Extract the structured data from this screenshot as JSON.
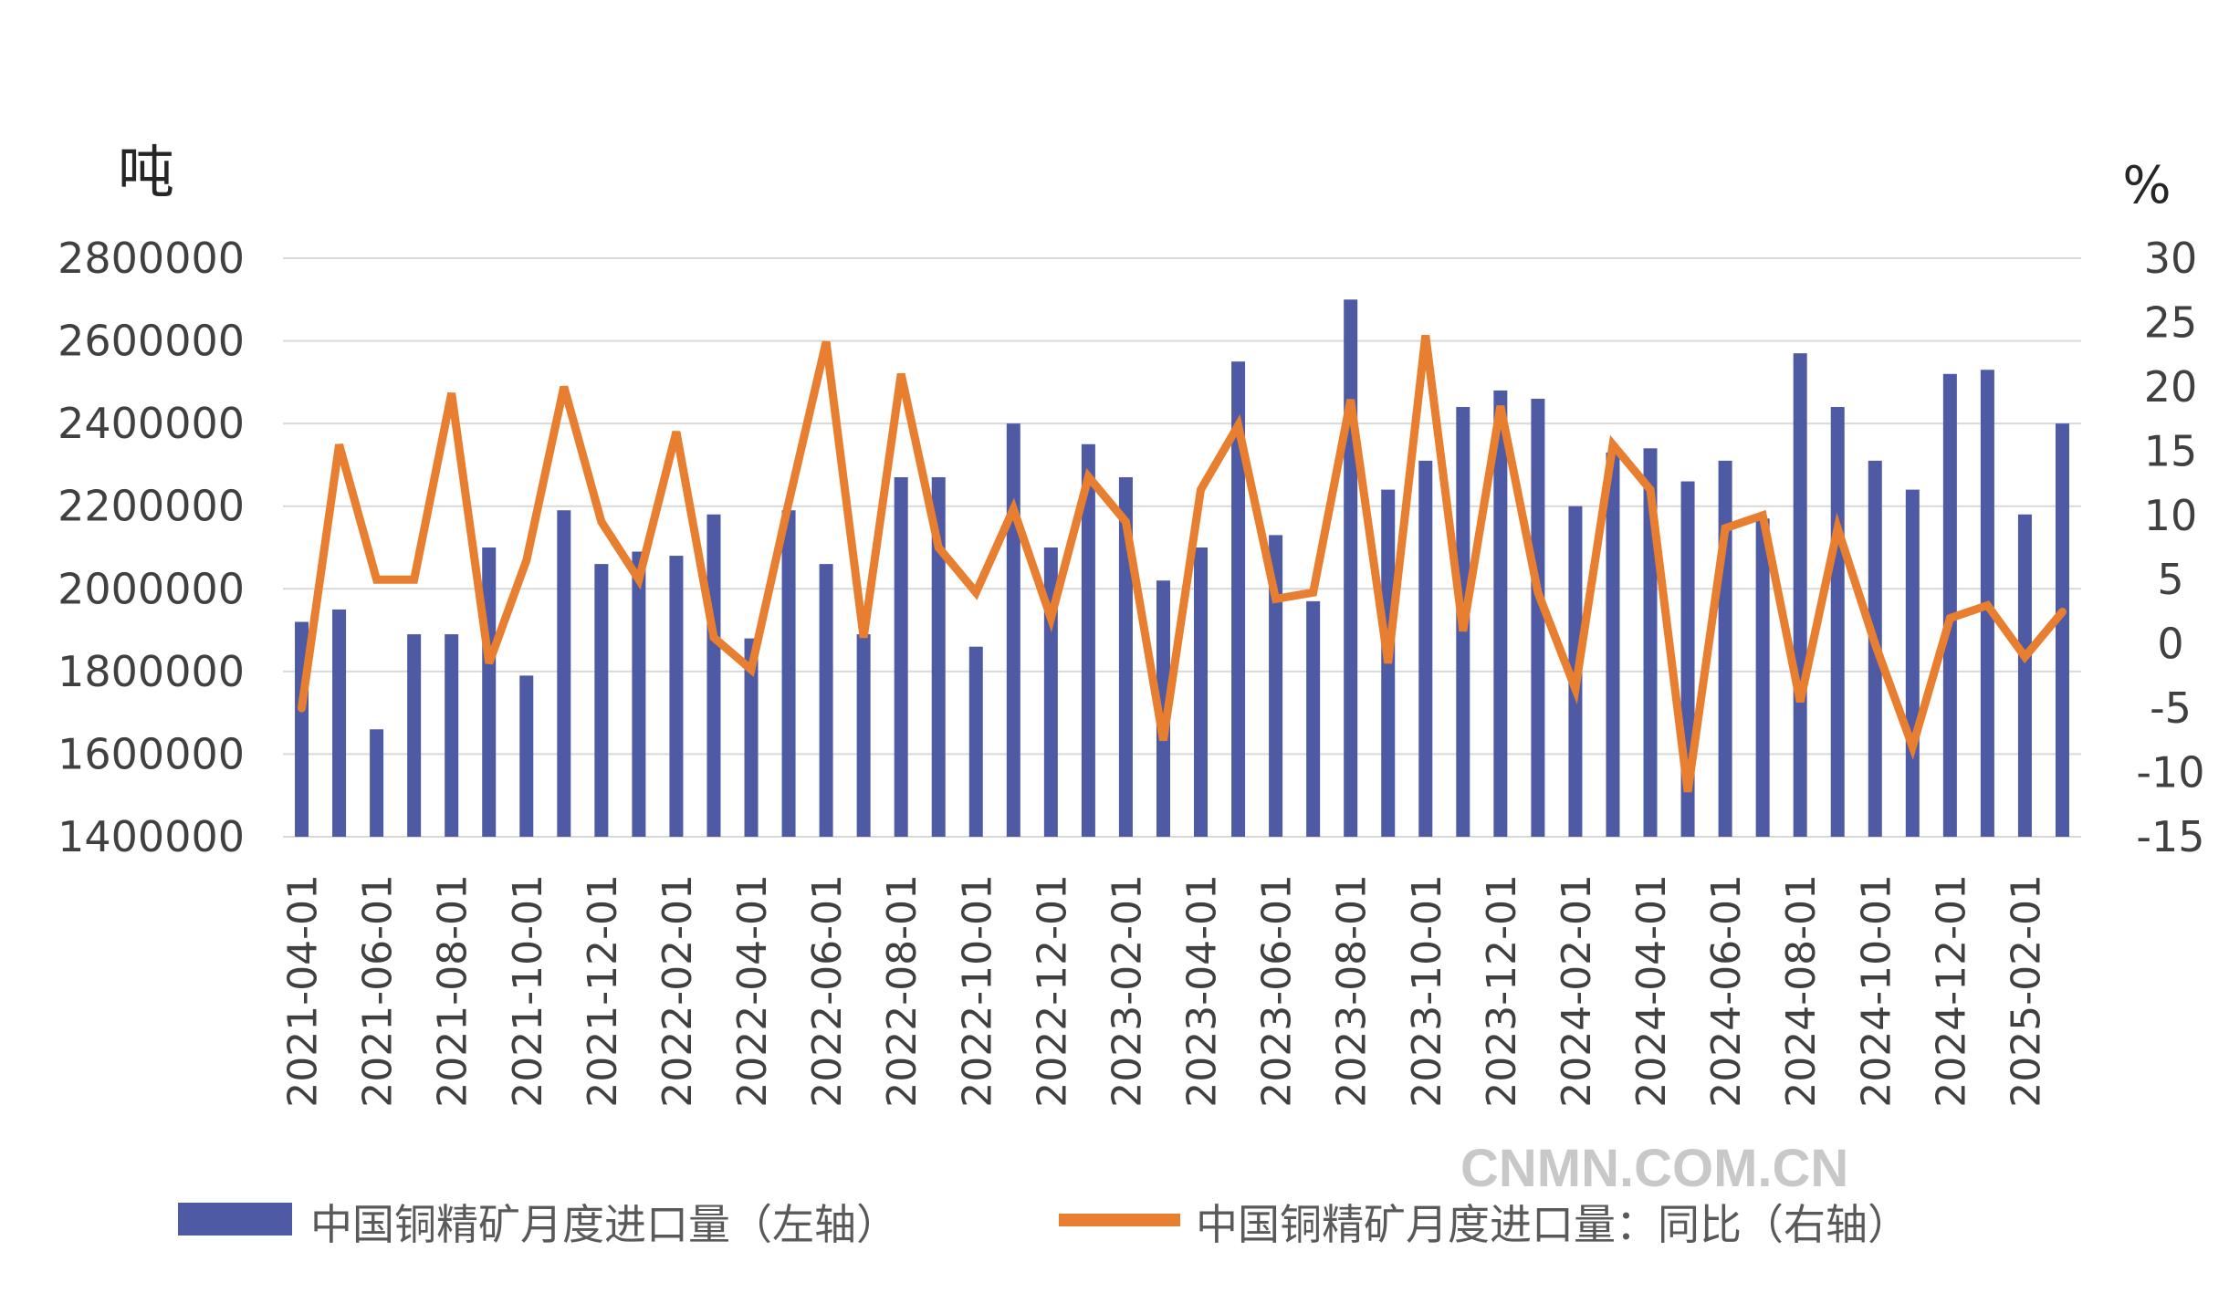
{
  "watermark": "CNMN.COM.CN",
  "colors": {
    "bar": "#4e5aa3",
    "line": "#e87e2f",
    "grid": "#d9d9d9",
    "text": "#404040"
  },
  "chart_data": {
    "type": "bar",
    "left_unit": "吨",
    "right_unit": "%",
    "ylim": [
      1400000,
      2800000
    ],
    "y2lim": [
      -15,
      30
    ],
    "yticks": [
      "2800000",
      "2600000",
      "2400000",
      "2200000",
      "2000000",
      "1800000",
      "1600000",
      "1400000"
    ],
    "y2ticks": [
      "30",
      "25",
      "20",
      "15",
      "10",
      "5",
      "0",
      "-5",
      "-10",
      "-15"
    ],
    "grid": true,
    "legend_position": "bottom",
    "categories": [
      "2021-04-01",
      "2021-05-01",
      "2021-06-01",
      "2021-07-01",
      "2021-08-01",
      "2021-09-01",
      "2021-10-01",
      "2021-11-01",
      "2021-12-01",
      "2022-01-01",
      "2022-02-01",
      "2022-03-01",
      "2022-04-01",
      "2022-05-01",
      "2022-06-01",
      "2022-07-01",
      "2022-08-01",
      "2022-09-01",
      "2022-10-01",
      "2022-11-01",
      "2022-12-01",
      "2023-01-01",
      "2023-02-01",
      "2023-03-01",
      "2023-04-01",
      "2023-05-01",
      "2023-06-01",
      "2023-07-01",
      "2023-08-01",
      "2023-09-01",
      "2023-10-01",
      "2023-11-01",
      "2023-12-01",
      "2024-01-01",
      "2024-02-01",
      "2024-03-01",
      "2024-04-01",
      "2024-05-01",
      "2024-06-01",
      "2024-07-01",
      "2024-08-01",
      "2024-09-01",
      "2024-10-01",
      "2024-11-01",
      "2024-12-01",
      "2025-01-01",
      "2025-02-01",
      "2025-03-01"
    ],
    "xtick_labels": [
      "2021-04-01",
      "2021-06-01",
      "2021-08-01",
      "2021-10-01",
      "2021-12-01",
      "2022-02-01",
      "2022-04-01",
      "2022-06-01",
      "2022-08-01",
      "2022-10-01",
      "2022-12-01",
      "2023-02-01",
      "2023-04-01",
      "2023-06-01",
      "2023-08-01",
      "2023-10-01",
      "2023-12-01",
      "2024-02-01",
      "2024-04-01",
      "2024-06-01",
      "2024-08-01",
      "2024-10-01",
      "2024-12-01",
      "2025-02-01"
    ],
    "series": [
      {
        "name": "中国铜精矿月度进口量（左轴）",
        "type": "bar",
        "axis": "left",
        "values": [
          1920000,
          1950000,
          1660000,
          1890000,
          1890000,
          2100000,
          1790000,
          2190000,
          2060000,
          2090000,
          2080000,
          2180000,
          1880000,
          2190000,
          2060000,
          1890000,
          2270000,
          2270000,
          1860000,
          2400000,
          2100000,
          2350000,
          2270000,
          2020000,
          2100000,
          2550000,
          2130000,
          1970000,
          2700000,
          2240000,
          2310000,
          2440000,
          2480000,
          2460000,
          2200000,
          2330000,
          2340000,
          2260000,
          2310000,
          2170000,
          2570000,
          2440000,
          2310000,
          2240000,
          2520000,
          2530000,
          2180000,
          2400000
        ]
      },
      {
        "name": "中国铜精矿月度进口量：同比（右轴）",
        "type": "line",
        "axis": "right",
        "values": [
          -5,
          15.5,
          5,
          5,
          19.5,
          -1.5,
          6.5,
          20,
          9.5,
          5,
          16.5,
          0.5,
          -2,
          11,
          23.5,
          0.5,
          21,
          7.5,
          4,
          10.5,
          2,
          13,
          9.5,
          -7.5,
          12,
          17,
          3.5,
          4,
          19,
          -1.5,
          24,
          1,
          18.5,
          4,
          -3.5,
          15.5,
          12,
          -11.5,
          9,
          10,
          -4.5,
          9,
          0,
          -8,
          2,
          3,
          -1,
          2.5
        ]
      }
    ]
  }
}
